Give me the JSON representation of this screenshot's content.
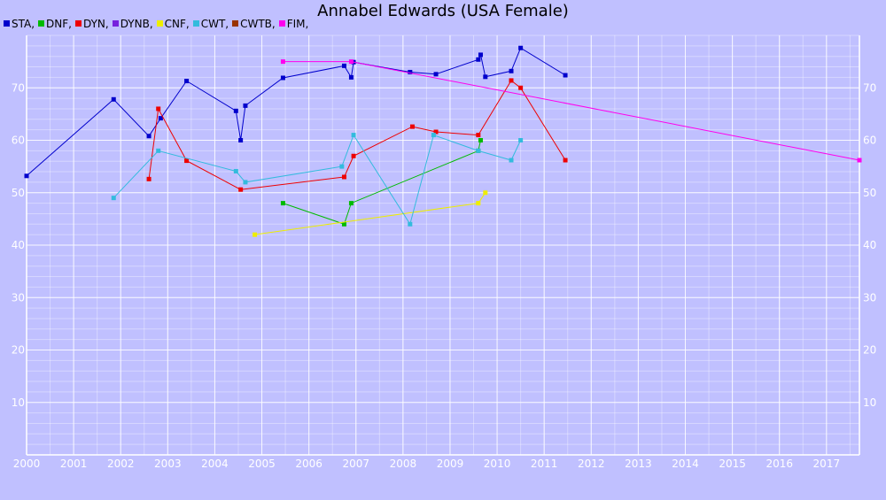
{
  "chart_data": {
    "type": "line",
    "title": "Annabel Edwards (USA Female)",
    "xlim": [
      2000,
      2017.7
    ],
    "ylim": [
      0,
      80
    ],
    "x_ticks": [
      2000,
      2001,
      2002,
      2003,
      2004,
      2005,
      2006,
      2007,
      2008,
      2009,
      2010,
      2011,
      2012,
      2013,
      2014,
      2015,
      2016,
      2017
    ],
    "y_ticks": [
      10,
      20,
      30,
      40,
      50,
      60,
      70
    ],
    "grid": true,
    "legend_position": "top-left",
    "series": [
      {
        "name": "STA",
        "legend_label": "STA,",
        "color": "#0000cc",
        "points": [
          [
            2000.0,
            53.2
          ],
          [
            2001.85,
            67.8
          ],
          [
            2002.6,
            60.8
          ],
          [
            2002.85,
            64.2
          ],
          [
            2003.4,
            71.3
          ],
          [
            2004.45,
            65.6
          ],
          [
            2004.55,
            60.0
          ],
          [
            2004.65,
            66.6
          ],
          [
            2005.45,
            71.9
          ],
          [
            2006.75,
            74.2
          ],
          [
            2006.9,
            72.0
          ],
          [
            2006.95,
            74.9
          ],
          [
            2008.15,
            73.0
          ],
          [
            2008.7,
            72.6
          ],
          [
            2009.6,
            75.4
          ],
          [
            2009.65,
            76.3
          ],
          [
            2009.75,
            72.1
          ],
          [
            2010.3,
            73.2
          ],
          [
            2010.5,
            77.6
          ],
          [
            2011.45,
            72.4
          ]
        ]
      },
      {
        "name": "DNF",
        "legend_label": "DNF,",
        "color": "#00bb00",
        "points": [
          [
            2005.45,
            48.0
          ],
          [
            2006.75,
            44.0
          ],
          [
            2006.9,
            48.0
          ],
          [
            2009.6,
            58.0
          ],
          [
            2009.65,
            60.0
          ]
        ]
      },
      {
        "name": "DYN",
        "legend_label": "DYN,",
        "color": "#ee0000",
        "points": [
          [
            2002.6,
            52.6
          ],
          [
            2002.8,
            66.0
          ],
          [
            2003.4,
            56.1
          ],
          [
            2004.55,
            50.6
          ],
          [
            2006.75,
            53.0
          ],
          [
            2006.95,
            57.0
          ],
          [
            2008.2,
            62.6
          ],
          [
            2008.7,
            61.6
          ],
          [
            2009.6,
            61.0
          ],
          [
            2010.3,
            71.4
          ],
          [
            2010.5,
            70.0
          ],
          [
            2011.45,
            56.2
          ]
        ]
      },
      {
        "name": "DYNB",
        "legend_label": "DYNB,",
        "color": "#7722dd",
        "points": []
      },
      {
        "name": "CNF",
        "legend_label": "CNF,",
        "color": "#eeee00",
        "points": [
          [
            2004.85,
            42.0
          ],
          [
            2009.6,
            48.0
          ],
          [
            2009.75,
            50.0
          ]
        ]
      },
      {
        "name": "CWT",
        "legend_label": "CWT,",
        "color": "#33bbdd",
        "points": [
          [
            2001.85,
            49.0
          ],
          [
            2002.8,
            58.0
          ],
          [
            2004.45,
            54.1
          ],
          [
            2004.65,
            52.0
          ],
          [
            2006.7,
            55.0
          ],
          [
            2006.95,
            61.0
          ],
          [
            2008.15,
            44.0
          ],
          [
            2008.65,
            61.0
          ],
          [
            2009.6,
            58.0
          ],
          [
            2010.3,
            56.2
          ],
          [
            2010.5,
            60.0
          ]
        ]
      },
      {
        "name": "CWTB",
        "legend_label": "CWTB,",
        "color": "#993300",
        "points": []
      },
      {
        "name": "FIM",
        "legend_label": "FIM,",
        "color": "#ff00ee",
        "points": [
          [
            2005.45,
            75.0
          ],
          [
            2006.9,
            75.0
          ],
          [
            2017.7,
            56.2
          ]
        ]
      }
    ]
  }
}
